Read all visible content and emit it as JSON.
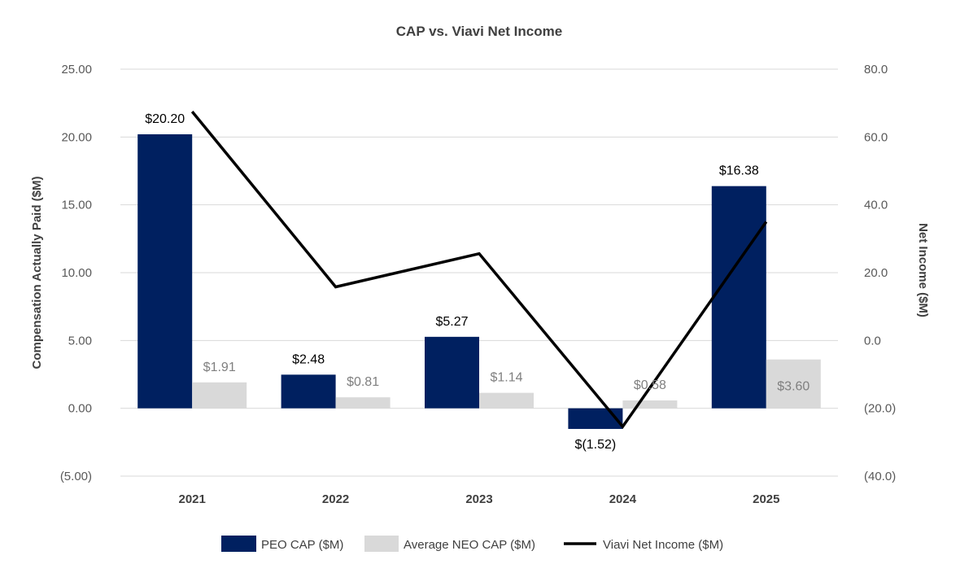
{
  "chart_data": {
    "type": "bar",
    "title": "CAP vs. Viavi Net Income",
    "categories": [
      "2021",
      "2022",
      "2023",
      "2024",
      "2025"
    ],
    "series": [
      {
        "name": "PEO CAP ($M)",
        "kind": "bar",
        "axis": "left",
        "color": "#002060",
        "values": [
          20.2,
          2.48,
          5.27,
          -1.52,
          16.38
        ],
        "labels": [
          "$20.20",
          "$2.48",
          "$5.27",
          "$(1.52)",
          "$16.38"
        ]
      },
      {
        "name": "Average NEO CAP ($M)",
        "kind": "bar",
        "axis": "left",
        "color": "#d9d9d9",
        "values": [
          1.91,
          0.81,
          1.14,
          0.58,
          3.6
        ],
        "labels": [
          "$1.91",
          "$0.81",
          "$1.14",
          "$0.58",
          "$3.60"
        ]
      },
      {
        "name": "Viavi Net Income ($M)",
        "kind": "line",
        "axis": "right",
        "color": "#000000",
        "values": [
          67.5,
          15.8,
          25.6,
          -25.4,
          35.0
        ]
      }
    ],
    "ylabel": "Compensation Actually Paid ($M)",
    "ylim": [
      -5,
      25
    ],
    "yticks": [
      -5,
      0,
      5,
      10,
      15,
      20,
      25
    ],
    "ytick_labels": [
      "(5.00)",
      "0.00",
      "5.00",
      "10.00",
      "15.00",
      "20.00",
      "25.00"
    ],
    "y2label": "Net Income ($M)",
    "y2lim": [
      -40,
      80
    ],
    "y2ticks": [
      -40,
      -20,
      0,
      20,
      40,
      60,
      80
    ],
    "y2tick_labels": [
      "(40.0)",
      "(20.0)",
      "0.0",
      "20.0",
      "40.0",
      "60.0",
      "80.0"
    ],
    "grid": true,
    "legend": "bottom"
  }
}
